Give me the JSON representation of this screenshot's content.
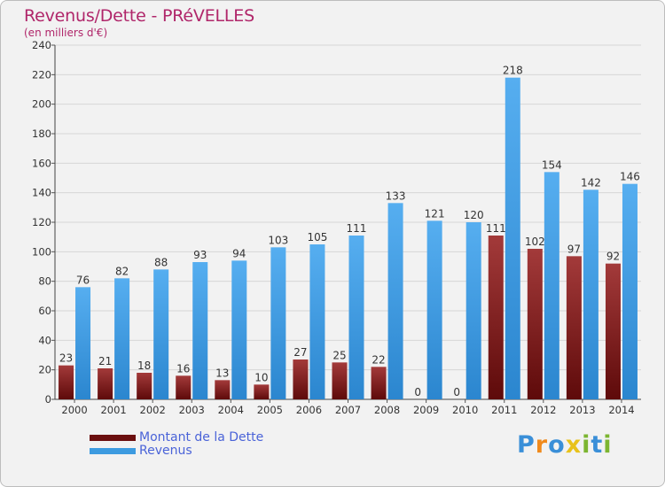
{
  "title": "Revenus/Dette - PRéVELLES",
  "subtitle": "(en milliers d'€)",
  "chart_data": {
    "type": "bar",
    "title": "Revenus/Dette - PRéVELLES",
    "ylabel": "(en milliers d'€)",
    "xlabel": "",
    "ylim": [
      0,
      240
    ],
    "yticks": [
      0,
      20,
      40,
      60,
      80,
      100,
      120,
      140,
      160,
      180,
      200,
      220,
      240
    ],
    "grid": true,
    "categories": [
      "2000",
      "2001",
      "2002",
      "2003",
      "2004",
      "2005",
      "2006",
      "2007",
      "2008",
      "2009",
      "2010",
      "2011",
      "2012",
      "2013",
      "2014"
    ],
    "series": [
      {
        "name": "Montant de la Dette",
        "color": "#8b1c1c",
        "values": [
          23,
          21,
          18,
          16,
          13,
          10,
          27,
          25,
          22,
          0,
          0,
          111,
          102,
          97,
          92
        ]
      },
      {
        "name": "Revenus",
        "color": "#3d9be0",
        "values": [
          76,
          82,
          88,
          93,
          94,
          103,
          105,
          111,
          133,
          121,
          120,
          218,
          154,
          142,
          146
        ]
      }
    ],
    "legend_position": "bottom-left"
  },
  "legend": [
    {
      "label": "Montant de la Dette",
      "color": "#6b0f0f"
    },
    {
      "label": "Revenus",
      "color": "#3d9be0"
    }
  ],
  "logo": {
    "letters": [
      "P",
      "r",
      "o",
      "x",
      "i",
      "t",
      "i"
    ],
    "colors": [
      "#3a8fd8",
      "#f08a1c",
      "#3a8fd8",
      "#e8c21a",
      "#7cb531",
      "#3a8fd8",
      "#7cb531"
    ]
  }
}
